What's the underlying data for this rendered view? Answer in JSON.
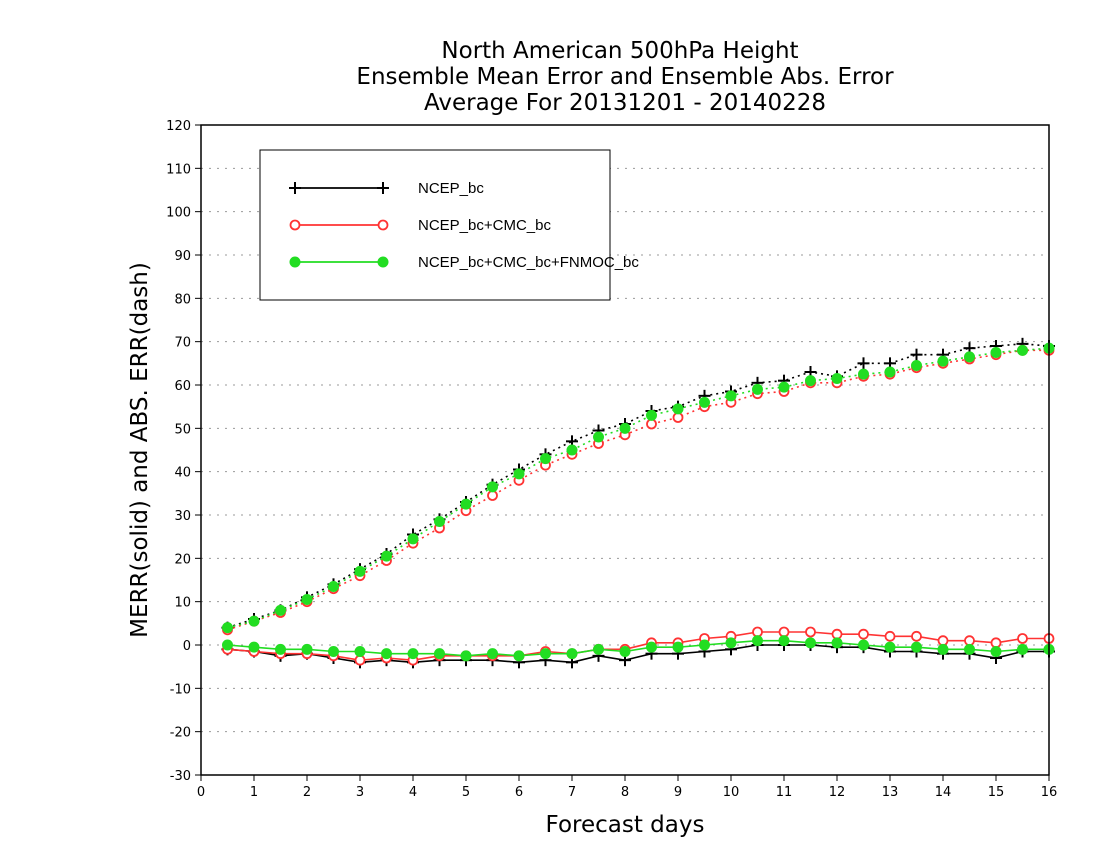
{
  "chart_data": {
    "type": "line",
    "title": [
      "North American 500hPa Height",
      "Ensemble Mean Error and Ensemble Abs. Error",
      "Average For 20131201 - 20140228"
    ],
    "xlabel": "Forecast days",
    "ylabel": "MERR(solid) and ABS. ERR(dash)",
    "xlim": [
      0,
      16
    ],
    "ylim": [
      -30,
      120
    ],
    "xticks": [
      "0",
      "1",
      "2",
      "3",
      "4",
      "5",
      "6",
      "7",
      "8",
      "9",
      "10",
      "11",
      "12",
      "13",
      "14",
      "15",
      "16"
    ],
    "yticks": [
      "-30",
      "-20",
      "-10",
      "0",
      "10",
      "20",
      "30",
      "40",
      "50",
      "60",
      "70",
      "80",
      "90",
      "100",
      "110",
      "120"
    ],
    "grid": true,
    "legend_position": "top-left",
    "x": [
      0.5,
      1,
      1.5,
      2,
      2.5,
      3,
      3.5,
      4,
      4.5,
      5,
      5.5,
      6,
      6.5,
      7,
      7.5,
      8,
      8.5,
      9,
      9.5,
      10,
      10.5,
      11,
      11.5,
      12,
      12.5,
      13,
      13.5,
      14,
      14.5,
      15,
      15.5,
      16
    ],
    "series": [
      {
        "name": "NCEP_bc",
        "color": "#000000",
        "marker": "plus",
        "merr": [
          -1,
          -1.5,
          -2.5,
          -2,
          -3,
          -4,
          -3.5,
          -4,
          -3.5,
          -3.5,
          -3.5,
          -4,
          -3.5,
          -4,
          -2.5,
          -3.5,
          -2,
          -2,
          -1.5,
          -1,
          0,
          0,
          0,
          -0.5,
          -0.5,
          -1.5,
          -1.5,
          -2,
          -2,
          -3,
          -1.5,
          -1.5
        ],
        "abs_err": [
          4,
          6,
          8,
          11,
          14,
          17.5,
          21,
          25.5,
          29,
          33,
          37,
          40.5,
          44,
          47,
          49.5,
          51,
          54,
          55,
          57.5,
          58.5,
          60.5,
          61,
          63,
          62,
          65,
          65,
          67,
          67,
          68.5,
          69,
          69.5,
          69
        ]
      },
      {
        "name": "NCEP_bc+CMC_bc",
        "color": "#ff3333",
        "marker": "circle",
        "merr": [
          -1,
          -1.5,
          -2,
          -2,
          -2.5,
          -3.5,
          -3,
          -3.5,
          -2.5,
          -2.5,
          -2.5,
          -2.5,
          -1.5,
          -2,
          -1,
          -1,
          0.5,
          0.5,
          1.5,
          2,
          3,
          3,
          3,
          2.5,
          2.5,
          2,
          2,
          1,
          1,
          0.5,
          1.5,
          1.5
        ],
        "abs_err": [
          3.5,
          5.5,
          7.5,
          10,
          13,
          16,
          19.5,
          23.5,
          27,
          31,
          34.5,
          38,
          41.5,
          44,
          46.5,
          48.5,
          51,
          52.5,
          55,
          56,
          58,
          58.5,
          60.5,
          60.5,
          62,
          62.5,
          64,
          65,
          66,
          67,
          68,
          68
        ]
      },
      {
        "name": "NCEP_bc+CMC_bc+FNMOC_bc",
        "color": "#22dd22",
        "marker": "filled-circle",
        "merr": [
          0,
          -0.5,
          -1,
          -1,
          -1.5,
          -1.5,
          -2,
          -2,
          -2,
          -2.5,
          -2,
          -2.5,
          -2,
          -2,
          -1,
          -1.5,
          -0.5,
          -0.5,
          0,
          0.5,
          1,
          1,
          0.5,
          0.5,
          0,
          -0.5,
          -0.5,
          -1,
          -1,
          -1.5,
          -1,
          -1
        ],
        "abs_err": [
          4,
          5.5,
          8,
          10.5,
          13.5,
          17,
          20.5,
          24.5,
          28.5,
          32.5,
          36.5,
          39.5,
          43,
          45,
          48,
          50,
          53,
          54.5,
          56,
          57.5,
          59,
          59.5,
          61,
          61.5,
          62.5,
          63,
          64.5,
          65.5,
          66.5,
          67.5,
          68,
          68.5
        ]
      }
    ]
  }
}
